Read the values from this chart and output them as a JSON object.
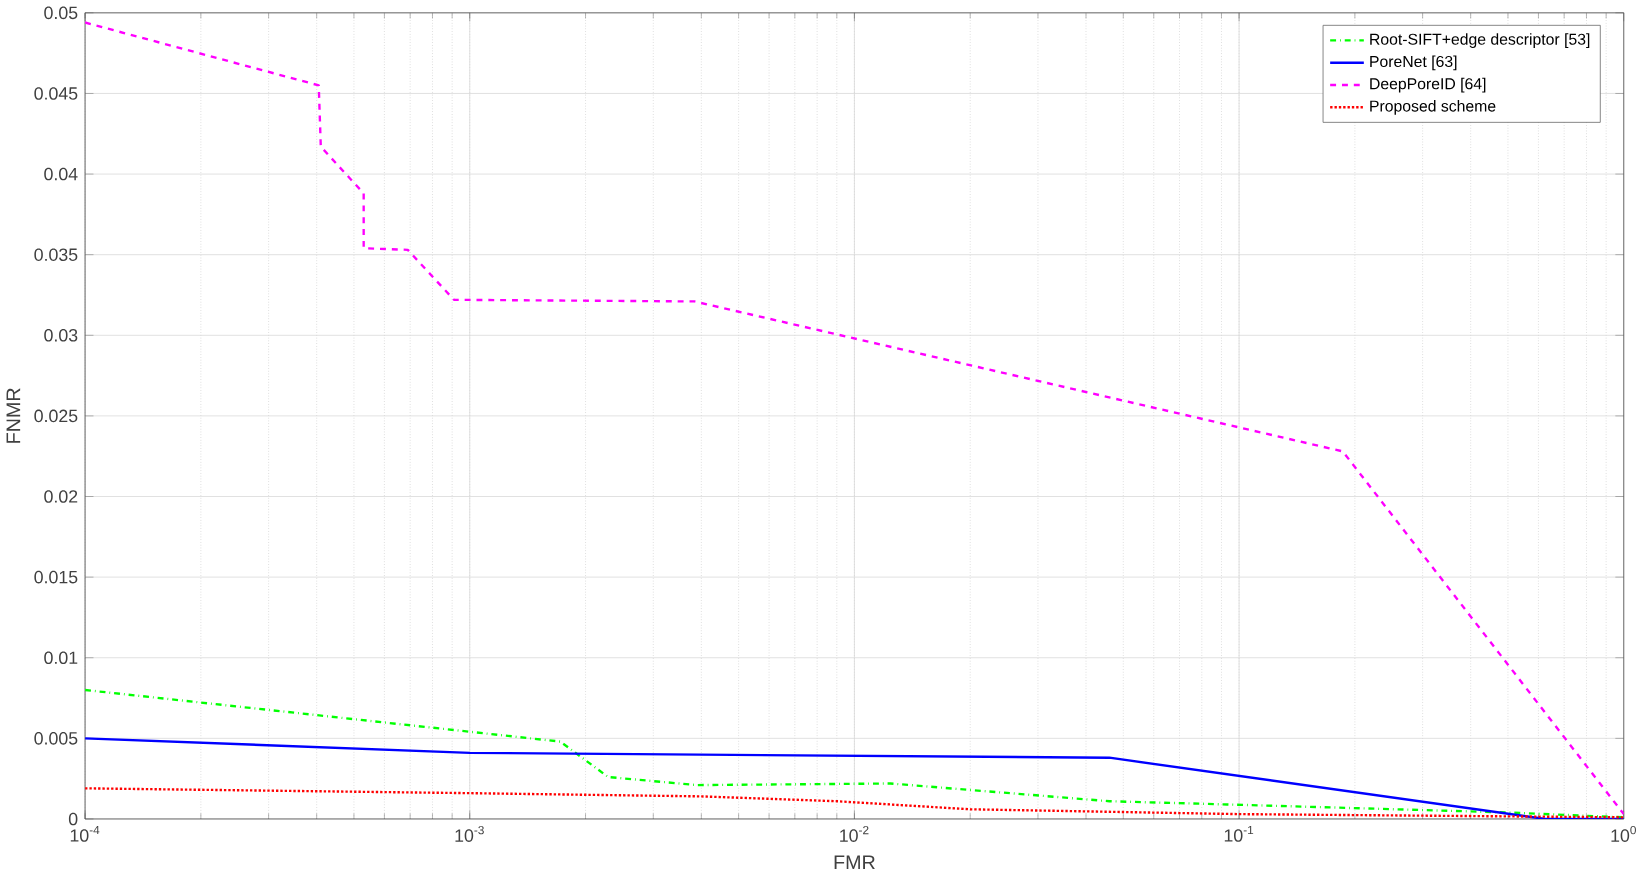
{
  "chart_data": {
    "type": "line",
    "xlabel": "FMR",
    "ylabel": "FNMR",
    "log": "x",
    "grid": true,
    "legend": "top right",
    "xlim": [
      0.0001,
      1
    ],
    "xticks": [
      {
        "value": 0.0001,
        "label": "10$^{-4}$"
      },
      {
        "value": 0.001,
        "label": "10$^{-3}$"
      },
      {
        "value": 0.01,
        "label": "10$^{-2}$"
      },
      {
        "value": 0.1,
        "label": "10$^{-1}$"
      },
      {
        "value": 1,
        "label": "10$^{0}$"
      }
    ],
    "ylim": [
      0,
      0.05
    ],
    "yticks": [
      0,
      0.005,
      0.01,
      0.015,
      0.02,
      0.025,
      0.03,
      0.035,
      0.04,
      0.045,
      0.05
    ],
    "series": [
      {
        "name": "Root-SIFT+edge descriptor [53]",
        "color": "#00ff00",
        "line_style": "dashdot",
        "x": [
          0.0001,
          0.00172,
          0.00229,
          0.0039,
          0.0124,
          0.046,
          0.093,
          0.5,
          1
        ],
        "values": [
          0.008,
          0.0048,
          0.0026,
          0.0021,
          0.0022,
          0.0011,
          0.0009,
          0.0004,
          0.0001
        ]
      },
      {
        "name": "PoreNet [63]",
        "color": "#0000ff",
        "line_style": "solid",
        "x": [
          0.0001,
          0.001,
          0.046,
          0.625,
          1
        ],
        "values": [
          0.005,
          0.0041,
          0.0038,
          0,
          0
        ]
      },
      {
        "name": "DeepPoreID [64]",
        "color": "#ff00ff",
        "line_style": "dashed",
        "x": [
          0.0001,
          0.000405,
          0.00041,
          0.00053,
          0.00053,
          0.00069,
          0.00091,
          0.00384,
          0.186,
          1
        ],
        "values": [
          0.0494,
          0.0455,
          0.0417,
          0.0388,
          0.0354,
          0.0353,
          0.0322,
          0.0321,
          0.0228,
          0.0003
        ]
      },
      {
        "name": "Proposed scheme",
        "color": "#ff0000",
        "line_style": "dotted",
        "x": [
          0.0001,
          0.001,
          0.004,
          0.009,
          0.02,
          0.1,
          1
        ],
        "values": [
          0.0019,
          0.0016,
          0.0014,
          0.0011,
          0.0006,
          0.0003,
          0.0001
        ]
      }
    ]
  }
}
